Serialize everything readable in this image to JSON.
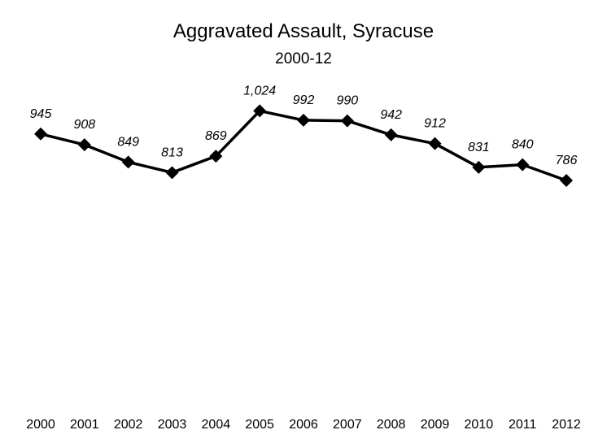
{
  "chart_data": {
    "type": "line",
    "title": "Aggravated Assault, Syracuse",
    "subtitle": "2000-12",
    "xlabel": "",
    "ylabel": "",
    "categories": [
      "2000",
      "2001",
      "2002",
      "2003",
      "2004",
      "2005",
      "2006",
      "2007",
      "2008",
      "2009",
      "2010",
      "2011",
      "2012"
    ],
    "series": [
      {
        "values": [
          945,
          908,
          849,
          813,
          869,
          1024,
          992,
          990,
          942,
          912,
          831,
          840,
          786
        ],
        "labels": [
          "945",
          "908",
          "849",
          "813",
          "869",
          "1,024",
          "992",
          "990",
          "942",
          "912",
          "831",
          "840",
          "786"
        ],
        "color": "#000000",
        "marker": "diamond"
      }
    ],
    "ylim": [
      0,
      1200
    ],
    "grid": false,
    "legend": "none",
    "axes_visible": false
  }
}
